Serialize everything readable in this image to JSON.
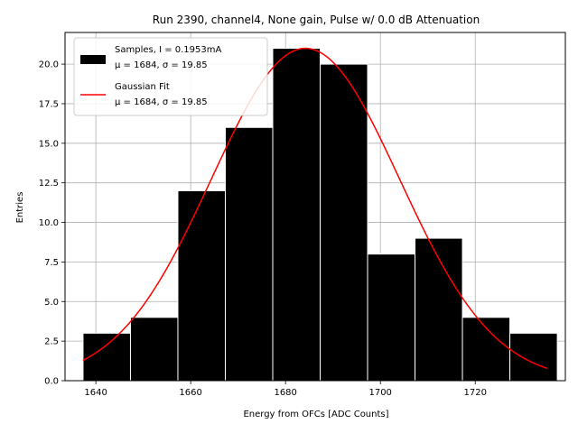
{
  "chart_data": {
    "type": "bar",
    "title": "Run 2390, channel4, None gain, Pulse w/ 0.0 dB Attenuation",
    "xlabel": "Energy from OFCs [ADC Counts]",
    "ylabel": "Entries",
    "xlim": [
      1633.5,
      1739.0
    ],
    "ylim": [
      0,
      22
    ],
    "grid": true,
    "legend_position": "upper-left",
    "xticks": [
      1640,
      1660,
      1680,
      1700,
      1720
    ],
    "xtick_labels": [
      "1640",
      "1660",
      "1680",
      "1700",
      "1720"
    ],
    "yticks": [
      0,
      2.5,
      5,
      7.5,
      10,
      12.5,
      15,
      17.5,
      20
    ],
    "ytick_labels": [
      "0.0",
      "2.5",
      "5.0",
      "7.5",
      "10.0",
      "12.5",
      "15.0",
      "17.5",
      "20.0"
    ],
    "histogram": {
      "name": "Samples, I = 0.1953mA",
      "stats": "μ = 1684, σ = 19.85",
      "color": "#000000",
      "edge_color": "#ffffff",
      "bin_edges": [
        1637.3,
        1647.3,
        1657.3,
        1667.3,
        1677.3,
        1687.3,
        1697.3,
        1707.3,
        1717.3,
        1727.3,
        1737.3
      ],
      "counts": [
        3,
        4,
        12,
        16,
        21,
        20,
        8,
        9,
        4,
        3
      ]
    },
    "fit": {
      "name": "Gaussian Fit",
      "stats": "μ = 1684, σ = 19.85",
      "color": "#ff0000",
      "mu": 1684.2,
      "sigma": 19.85,
      "amplitude": 21.0,
      "x_range": [
        1637.3,
        1735.2
      ]
    }
  }
}
